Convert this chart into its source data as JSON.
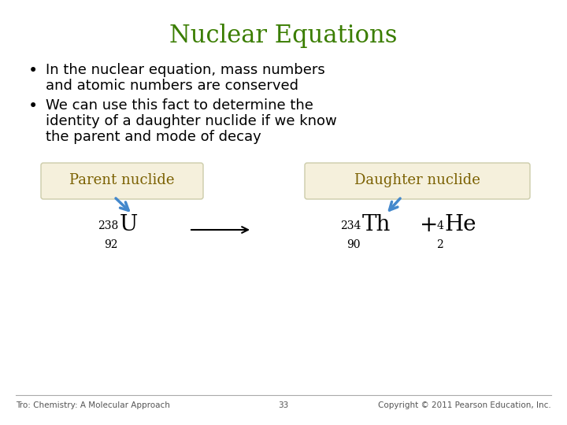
{
  "title": "Nuclear Equations",
  "title_color": "#3a7d00",
  "title_fontsize": 22,
  "background_color": "#ffffff",
  "bullet1_line1": "In the nuclear equation, mass numbers",
  "bullet1_line2": "and atomic numbers are conserved",
  "bullet2_line1": "We can use this fact to determine the",
  "bullet2_line2": "identity of a daughter nuclide if we know",
  "bullet2_line3": "the parent and mode of decay",
  "bullet_color": "#000000",
  "bullet_fontsize": 13,
  "box_bg_color": "#f5f0dc",
  "box_edge_color": "#ccccaa",
  "label_parent": "Parent nuclide",
  "label_daughter": "Daughter nuclide",
  "label_color": "#7a6000",
  "label_fontsize": 13,
  "arrow_color": "#4488cc",
  "eq_symbol_fontsize": 20,
  "eq_script_fontsize": 10,
  "equation_color": "#000000",
  "footer_left": "Tro: Chemistry: A Molecular Approach",
  "footer_center": "33",
  "footer_right": "Copyright © 2011 Pearson Education, Inc.",
  "footer_fontsize": 7.5,
  "footer_color": "#555555"
}
